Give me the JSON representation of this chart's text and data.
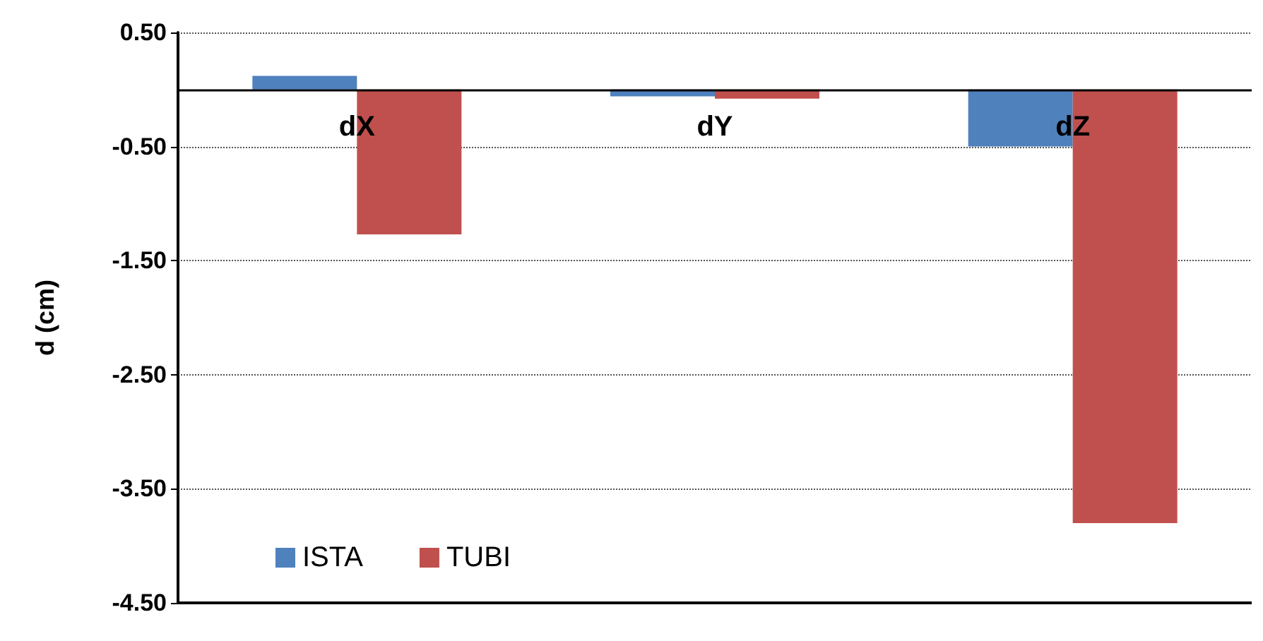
{
  "chart_data": {
    "type": "bar",
    "ylabel": "d (cm)",
    "categories": [
      "dX",
      "dY",
      "dZ"
    ],
    "series": [
      {
        "name": "ISTA",
        "color": "#4f81bd",
        "values": [
          0.12,
          -0.06,
          -0.5
        ]
      },
      {
        "name": "TUBI",
        "color": "#c0504d",
        "values": [
          -1.27,
          -0.08,
          -3.8
        ]
      }
    ],
    "ylim": [
      -4.5,
      0.5
    ],
    "yticks": [
      {
        "value": 0.5,
        "label": "0.50"
      },
      {
        "value": -0.5,
        "label": "-0.50"
      },
      {
        "value": -1.5,
        "label": "-1.50"
      },
      {
        "value": -2.5,
        "label": "-2.50"
      },
      {
        "value": -3.5,
        "label": "-3.50"
      },
      {
        "value": -4.5,
        "label": "-4.50"
      }
    ],
    "grid": "y",
    "legend": "bottom left"
  }
}
